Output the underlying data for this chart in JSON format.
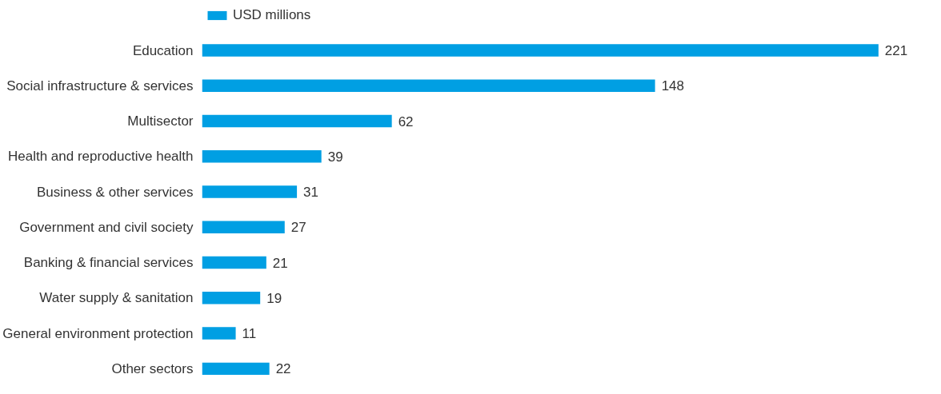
{
  "chart_data": {
    "type": "bar",
    "orientation": "horizontal",
    "categories": [
      "Education",
      "Social infrastructure & services",
      "Multisector",
      "Health and reproductive health",
      "Business & other services",
      "Government and civil society",
      "Banking & financial services",
      "Water supply & sanitation",
      "General environment protection",
      "Other sectors"
    ],
    "series": [
      {
        "name": "USD millions",
        "color": "#009fe3",
        "values": [
          221,
          148,
          62,
          39,
          31,
          27,
          21,
          19,
          11,
          22
        ]
      }
    ],
    "data_labels": true,
    "legend": "top left",
    "grid": false,
    "tick_labels": "y"
  }
}
